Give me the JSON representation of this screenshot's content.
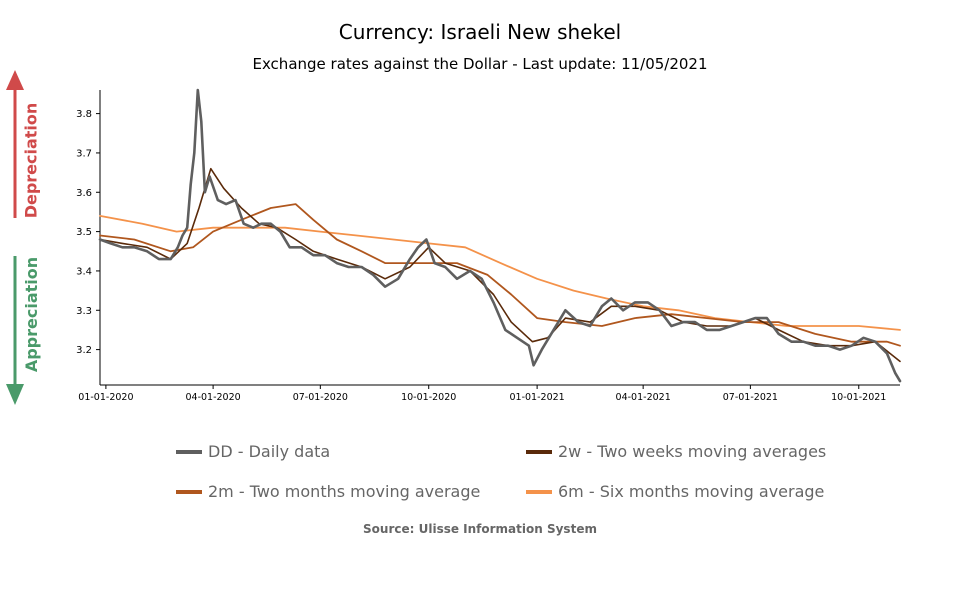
{
  "chart_data": {
    "type": "line",
    "title": "Currency: Israeli New shekel",
    "subtitle": "Exchange rates against the Dollar - Last update: 11/05/2021",
    "source": "Source: Ulisse Information System",
    "xlabel": "",
    "ylabel": "",
    "x_ticks": [
      "01-01-2020",
      "04-01-2020",
      "07-01-2020",
      "10-01-2020",
      "01-01-2021",
      "04-01-2021",
      "07-01-2021",
      "10-01-2021"
    ],
    "y_ticks": [
      3.2,
      3.3,
      3.4,
      3.5,
      3.6,
      3.7,
      3.8
    ],
    "ylim": [
      3.11,
      3.86
    ],
    "xlim": [
      "2019-12-27",
      "2021-11-05"
    ],
    "grid": false,
    "legend_position": "bottom",
    "annotations": {
      "up": "Depreciation",
      "down": "Appreciation"
    },
    "colors": {
      "up": "#d04a4a",
      "down": "#4a9a6a",
      "axis": "#000000",
      "legend_text": "#666666"
    },
    "series": [
      {
        "name": "DD - Daily data",
        "color": "#5f5f5f",
        "width": 2.6,
        "points": [
          [
            "2019-12-27",
            3.48
          ],
          [
            "2020-01-05",
            3.47
          ],
          [
            "2020-01-15",
            3.46
          ],
          [
            "2020-01-25",
            3.46
          ],
          [
            "2020-02-05",
            3.45
          ],
          [
            "2020-02-15",
            3.43
          ],
          [
            "2020-02-25",
            3.43
          ],
          [
            "2020-03-02",
            3.46
          ],
          [
            "2020-03-06",
            3.49
          ],
          [
            "2020-03-10",
            3.51
          ],
          [
            "2020-03-13",
            3.62
          ],
          [
            "2020-03-16",
            3.7
          ],
          [
            "2020-03-19",
            3.86
          ],
          [
            "2020-03-22",
            3.78
          ],
          [
            "2020-03-25",
            3.6
          ],
          [
            "2020-03-29",
            3.64
          ],
          [
            "2020-04-05",
            3.58
          ],
          [
            "2020-04-12",
            3.57
          ],
          [
            "2020-04-20",
            3.58
          ],
          [
            "2020-04-27",
            3.52
          ],
          [
            "2020-05-05",
            3.51
          ],
          [
            "2020-05-12",
            3.52
          ],
          [
            "2020-05-20",
            3.52
          ],
          [
            "2020-05-28",
            3.5
          ],
          [
            "2020-06-05",
            3.46
          ],
          [
            "2020-06-15",
            3.46
          ],
          [
            "2020-06-25",
            3.44
          ],
          [
            "2020-07-05",
            3.44
          ],
          [
            "2020-07-15",
            3.42
          ],
          [
            "2020-07-25",
            3.41
          ],
          [
            "2020-08-05",
            3.41
          ],
          [
            "2020-08-15",
            3.39
          ],
          [
            "2020-08-25",
            3.36
          ],
          [
            "2020-09-05",
            3.38
          ],
          [
            "2020-09-15",
            3.43
          ],
          [
            "2020-09-22",
            3.46
          ],
          [
            "2020-09-29",
            3.48
          ],
          [
            "2020-10-06",
            3.42
          ],
          [
            "2020-10-15",
            3.41
          ],
          [
            "2020-10-25",
            3.38
          ],
          [
            "2020-11-05",
            3.4
          ],
          [
            "2020-11-15",
            3.38
          ],
          [
            "2020-11-25",
            3.32
          ],
          [
            "2020-12-05",
            3.25
          ],
          [
            "2020-12-15",
            3.23
          ],
          [
            "2020-12-25",
            3.21
          ],
          [
            "2020-12-29",
            3.16
          ],
          [
            "2021-01-05",
            3.2
          ],
          [
            "2021-01-15",
            3.25
          ],
          [
            "2021-01-25",
            3.3
          ],
          [
            "2021-02-05",
            3.27
          ],
          [
            "2021-02-15",
            3.26
          ],
          [
            "2021-02-25",
            3.31
          ],
          [
            "2021-03-05",
            3.33
          ],
          [
            "2021-03-15",
            3.3
          ],
          [
            "2021-03-25",
            3.32
          ],
          [
            "2021-04-05",
            3.32
          ],
          [
            "2021-04-15",
            3.3
          ],
          [
            "2021-04-25",
            3.26
          ],
          [
            "2021-05-05",
            3.27
          ],
          [
            "2021-05-15",
            3.27
          ],
          [
            "2021-05-25",
            3.25
          ],
          [
            "2021-06-05",
            3.25
          ],
          [
            "2021-06-15",
            3.26
          ],
          [
            "2021-06-25",
            3.27
          ],
          [
            "2021-07-05",
            3.28
          ],
          [
            "2021-07-15",
            3.28
          ],
          [
            "2021-07-25",
            3.24
          ],
          [
            "2021-08-05",
            3.22
          ],
          [
            "2021-08-15",
            3.22
          ],
          [
            "2021-08-25",
            3.21
          ],
          [
            "2021-09-05",
            3.21
          ],
          [
            "2021-09-15",
            3.2
          ],
          [
            "2021-09-25",
            3.21
          ],
          [
            "2021-10-05",
            3.23
          ],
          [
            "2021-10-15",
            3.22
          ],
          [
            "2021-10-25",
            3.19
          ],
          [
            "2021-11-01",
            3.14
          ],
          [
            "2021-11-05",
            3.12
          ]
        ]
      },
      {
        "name": "2w - Two weeks moving averages",
        "color": "#5a2a0a",
        "width": 1.6,
        "points": [
          [
            "2019-12-27",
            3.48
          ],
          [
            "2020-01-15",
            3.47
          ],
          [
            "2020-02-05",
            3.46
          ],
          [
            "2020-02-25",
            3.43
          ],
          [
            "2020-03-10",
            3.47
          ],
          [
            "2020-03-20",
            3.56
          ],
          [
            "2020-03-30",
            3.66
          ],
          [
            "2020-04-10",
            3.61
          ],
          [
            "2020-04-25",
            3.56
          ],
          [
            "2020-05-10",
            3.52
          ],
          [
            "2020-05-25",
            3.51
          ],
          [
            "2020-06-10",
            3.48
          ],
          [
            "2020-06-25",
            3.45
          ],
          [
            "2020-07-15",
            3.43
          ],
          [
            "2020-08-05",
            3.41
          ],
          [
            "2020-08-25",
            3.38
          ],
          [
            "2020-09-15",
            3.41
          ],
          [
            "2020-10-01",
            3.46
          ],
          [
            "2020-10-15",
            3.42
          ],
          [
            "2020-11-05",
            3.4
          ],
          [
            "2020-11-25",
            3.34
          ],
          [
            "2020-12-10",
            3.27
          ],
          [
            "2020-12-28",
            3.22
          ],
          [
            "2021-01-10",
            3.23
          ],
          [
            "2021-01-25",
            3.28
          ],
          [
            "2021-02-15",
            3.27
          ],
          [
            "2021-03-05",
            3.31
          ],
          [
            "2021-03-25",
            3.31
          ],
          [
            "2021-04-15",
            3.3
          ],
          [
            "2021-05-05",
            3.27
          ],
          [
            "2021-05-25",
            3.26
          ],
          [
            "2021-06-15",
            3.26
          ],
          [
            "2021-07-05",
            3.28
          ],
          [
            "2021-07-25",
            3.25
          ],
          [
            "2021-08-15",
            3.22
          ],
          [
            "2021-09-05",
            3.21
          ],
          [
            "2021-09-25",
            3.21
          ],
          [
            "2021-10-15",
            3.22
          ],
          [
            "2021-11-05",
            3.17
          ]
        ]
      },
      {
        "name": "2m - Two months moving average",
        "color": "#b0571e",
        "width": 1.8,
        "points": [
          [
            "2019-12-27",
            3.49
          ],
          [
            "2020-01-25",
            3.48
          ],
          [
            "2020-02-25",
            3.45
          ],
          [
            "2020-03-15",
            3.46
          ],
          [
            "2020-04-01",
            3.5
          ],
          [
            "2020-04-25",
            3.53
          ],
          [
            "2020-05-20",
            3.56
          ],
          [
            "2020-06-10",
            3.57
          ],
          [
            "2020-06-25",
            3.53
          ],
          [
            "2020-07-15",
            3.48
          ],
          [
            "2020-08-05",
            3.45
          ],
          [
            "2020-08-25",
            3.42
          ],
          [
            "2020-09-25",
            3.42
          ],
          [
            "2020-10-25",
            3.42
          ],
          [
            "2020-11-20",
            3.39
          ],
          [
            "2020-12-10",
            3.34
          ],
          [
            "2021-01-01",
            3.28
          ],
          [
            "2021-01-25",
            3.27
          ],
          [
            "2021-02-25",
            3.26
          ],
          [
            "2021-03-25",
            3.28
          ],
          [
            "2021-04-25",
            3.29
          ],
          [
            "2021-05-25",
            3.28
          ],
          [
            "2021-06-25",
            3.27
          ],
          [
            "2021-07-25",
            3.27
          ],
          [
            "2021-08-25",
            3.24
          ],
          [
            "2021-09-25",
            3.22
          ],
          [
            "2021-10-25",
            3.22
          ],
          [
            "2021-11-05",
            3.21
          ]
        ]
      },
      {
        "name": "6m - Six months moving average",
        "color": "#f4924a",
        "width": 1.8,
        "points": [
          [
            "2019-12-27",
            3.54
          ],
          [
            "2020-02-01",
            3.52
          ],
          [
            "2020-03-01",
            3.5
          ],
          [
            "2020-04-01",
            3.51
          ],
          [
            "2020-05-01",
            3.51
          ],
          [
            "2020-06-01",
            3.51
          ],
          [
            "2020-07-01",
            3.5
          ],
          [
            "2020-08-01",
            3.49
          ],
          [
            "2020-09-01",
            3.48
          ],
          [
            "2020-10-01",
            3.47
          ],
          [
            "2020-11-01",
            3.46
          ],
          [
            "2020-12-01",
            3.42
          ],
          [
            "2021-01-01",
            3.38
          ],
          [
            "2021-02-01",
            3.35
          ],
          [
            "2021-03-01",
            3.33
          ],
          [
            "2021-04-01",
            3.31
          ],
          [
            "2021-05-01",
            3.3
          ],
          [
            "2021-06-01",
            3.28
          ],
          [
            "2021-07-01",
            3.27
          ],
          [
            "2021-08-01",
            3.26
          ],
          [
            "2021-09-01",
            3.26
          ],
          [
            "2021-10-01",
            3.26
          ],
          [
            "2021-11-05",
            3.25
          ]
        ]
      }
    ]
  }
}
